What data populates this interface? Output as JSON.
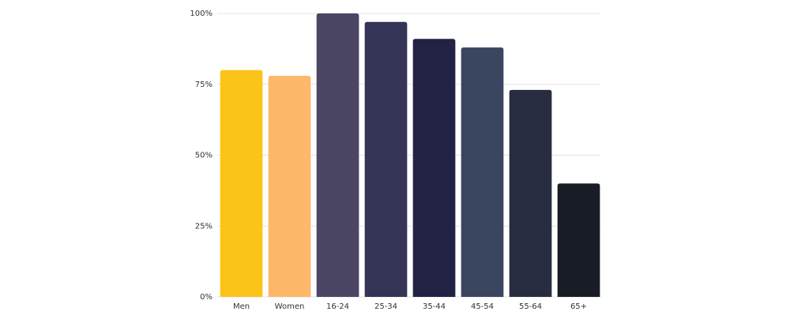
{
  "chart_data": {
    "type": "bar",
    "categories": [
      "Men",
      "Women",
      "16-24",
      "25-34",
      "35-44",
      "45-54",
      "55-64",
      "65+"
    ],
    "values": [
      80,
      78,
      100,
      97,
      91,
      88,
      73,
      40
    ],
    "colors": [
      "#fbc418",
      "#fdb86a",
      "#4a4663",
      "#333456",
      "#212244",
      "#3a4560",
      "#282c40",
      "#181c24"
    ],
    "ylim": [
      0,
      100
    ],
    "yticks": [
      {
        "value": 0,
        "label": "0%"
      },
      {
        "value": 25,
        "label": "25%"
      },
      {
        "value": 50,
        "label": "50%"
      },
      {
        "value": 75,
        "label": "75%"
      },
      {
        "value": 100,
        "label": "100%"
      }
    ],
    "grid": true
  }
}
